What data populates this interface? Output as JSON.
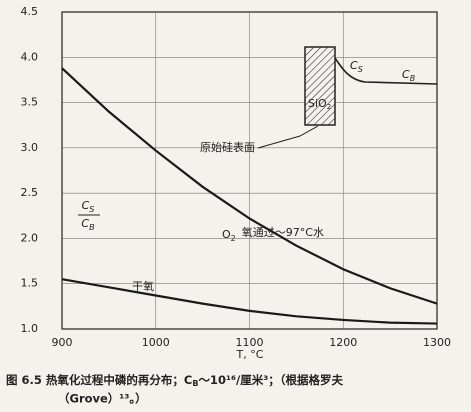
{
  "chart_data": {
    "type": "line",
    "xlabel": "T, °C",
    "ylabel": {
      "num": {
        "main": "C",
        "sub": "S"
      },
      "den": {
        "main": "C",
        "sub": "B"
      }
    },
    "x": [
      900,
      950,
      1000,
      1050,
      1100,
      1150,
      1200,
      1250,
      1300
    ],
    "series": [
      {
        "name": "wet",
        "color": "#1a1a1a",
        "values": [
          3.88,
          3.4,
          2.97,
          2.57,
          2.22,
          1.92,
          1.66,
          1.45,
          1.28
        ]
      },
      {
        "name": "dry",
        "color": "#1a1a1a",
        "values": [
          1.55,
          1.46,
          1.37,
          1.28,
          1.2,
          1.14,
          1.1,
          1.07,
          1.06
        ]
      }
    ],
    "xlim": [
      900,
      1300
    ],
    "xticks": [
      900,
      1000,
      1100,
      1200,
      1300
    ],
    "ylim": [
      1,
      4.5
    ],
    "yticks": [
      {
        "value": 1,
        "label": "1.0"
      },
      1.5,
      {
        "value": 2,
        "label": "2.0"
      },
      2.5,
      {
        "value": 3,
        "label": "3.0"
      },
      3.5,
      {
        "value": 4,
        "label": "4.0"
      },
      4.5
    ],
    "grid": true
  },
  "annotations": {
    "inset_cs": {
      "main": "C",
      "sub": "S"
    },
    "inset_cb": {
      "main": "C",
      "sub": "B"
    },
    "sio2": {
      "main": "SiO",
      "sub": "2"
    },
    "surface": "原始硅表面",
    "wet": {
      "main": "O",
      "sub": "2",
      "rest": "氧通过～97°C水"
    },
    "dry": "干氧"
  },
  "caption": {
    "a": "图 6.5  热氧化过程中磷的再分布；C",
    "sub": "B",
    "b": "～10¹⁶/厘米³；（根据格罗夫",
    "line2": "（Grove）¹³。）"
  }
}
